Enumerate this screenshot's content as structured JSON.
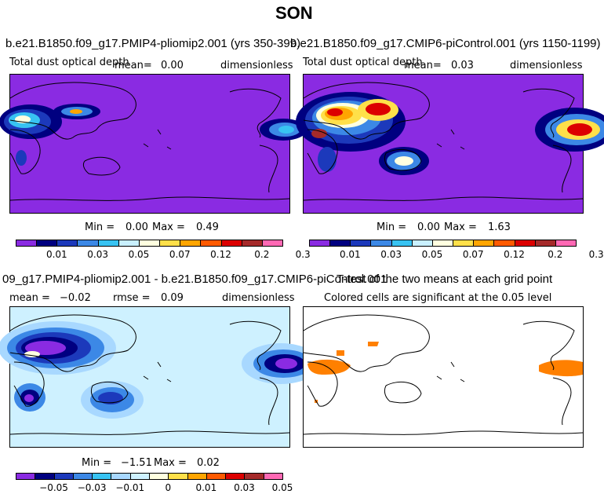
{
  "figure": {
    "title": "SON"
  },
  "panels": {
    "top_left": {
      "title": "b.e21.B1850.f09_g17.PMIP4-pliomip2.001 (yrs 350-399)",
      "variable": "Total dust optical depth",
      "mean_label": "mean=",
      "mean": "0.00",
      "units": "dimensionless",
      "min_label": "Min =",
      "min": "0.00",
      "max_label": "Max =",
      "max": "0.49"
    },
    "top_right": {
      "title": "b.e21.B1850.f09_g17.CMIP6-piControl.001 (yrs 1150-1199)",
      "variable": "Total dust optical depth",
      "mean_label": "mean=",
      "mean": "0.03",
      "units": "dimensionless",
      "min_label": "Min =",
      "min": "0.00",
      "max_label": "Max =",
      "max": "1.63"
    },
    "bottom_left": {
      "title": "09_g17.PMIP4-pliomip2.001 - b.e21.B1850.f09_g17.CMIP6-piControl.001",
      "mean_label": "mean =",
      "mean": "−0.02",
      "rmse_label": "rmse =",
      "rmse": "0.09",
      "units": "dimensionless",
      "min_label": "Min =",
      "min": "−1.51",
      "max_label": "Max =",
      "max": "0.02"
    },
    "bottom_right": {
      "title": "T-test of the two means at each grid point",
      "subtitle": "Colored cells are significant at the 0.05 level"
    }
  },
  "colorbars": {
    "abs": {
      "colors": [
        "#8a2be2",
        "#000080",
        "#1c39bb",
        "#3c88e6",
        "#38c3f2",
        "#c9f0ff",
        "#ffffe0",
        "#ffe049",
        "#ffa500",
        "#ff5a00",
        "#dc0000",
        "#a52a2a",
        "#ff69b4"
      ],
      "ticks": [
        "0.01",
        "0.03",
        "0.05",
        "0.07",
        "0.12",
        "0.2",
        "0.3"
      ]
    },
    "diff": {
      "colors": [
        "#8a2be2",
        "#000080",
        "#1c39bb",
        "#3c88e6",
        "#38c3f2",
        "#a8d8ff",
        "#cef1ff",
        "#ffffe0",
        "#ffe049",
        "#ffa500",
        "#ff5a00",
        "#dc0000",
        "#a52a2a",
        "#ff69b4"
      ],
      "ticks": [
        "−0.05",
        "−0.03",
        "−0.01",
        "0",
        "0.01",
        "0.03",
        "0.05"
      ]
    }
  },
  "chart_data": [
    {
      "type": "heatmap",
      "title": "b.e21.B1850.f09_g17.PMIP4-pliomip2.001 (yrs 350-399)",
      "variable": "Total dust optical depth",
      "units": "dimensionless",
      "mean": 0.0,
      "min": 0.0,
      "max": 0.49,
      "levels": [
        0.01,
        0.02,
        0.03,
        0.04,
        0.05,
        0.06,
        0.07,
        0.1,
        0.12,
        0.15,
        0.2,
        0.3
      ]
    },
    {
      "type": "heatmap",
      "title": "b.e21.B1850.f09_g17.CMIP6-piControl.001 (yrs 1150-1199)",
      "variable": "Total dust optical depth",
      "units": "dimensionless",
      "mean": 0.03,
      "min": 0.0,
      "max": 1.63,
      "levels": [
        0.01,
        0.02,
        0.03,
        0.04,
        0.05,
        0.06,
        0.07,
        0.1,
        0.12,
        0.15,
        0.2,
        0.3
      ]
    },
    {
      "type": "heatmap",
      "title": "09_g17.PMIP4-pliomip2.001 - b.e21.B1850.f09_g17.CMIP6-piControl.001",
      "units": "dimensionless",
      "mean": -0.02,
      "rmse": 0.09,
      "min": -1.51,
      "max": 0.02,
      "levels": [
        -0.05,
        -0.04,
        -0.03,
        -0.02,
        -0.01,
        -0.005,
        0,
        0.005,
        0.01,
        0.02,
        0.03,
        0.04,
        0.05
      ]
    },
    {
      "type": "heatmap",
      "title": "T-test of the two means at each grid point",
      "subtitle": "Colored cells are significant at the 0.05 level",
      "significance_level": 0.05
    }
  ]
}
